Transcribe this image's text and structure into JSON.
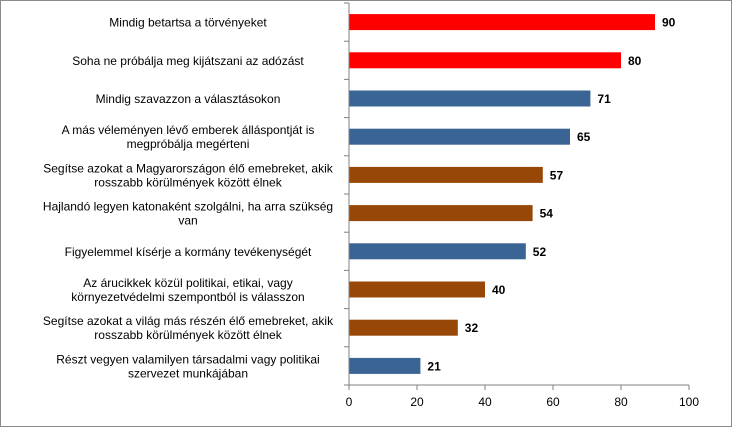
{
  "chart_data": {
    "type": "bar",
    "orientation": "horizontal",
    "title": "",
    "xlabel": "",
    "ylabel": "",
    "xlim": [
      0,
      100
    ],
    "x_ticks": [
      0,
      20,
      40,
      60,
      80,
      100
    ],
    "x_tick_labels": [
      "0",
      "20",
      "40",
      "60",
      "80",
      "100"
    ],
    "grid": false,
    "legend": "none",
    "categories": [
      [
        "Mindig betartsa a törvényeket"
      ],
      [
        "Soha ne próbálja meg kijátszani az adózást"
      ],
      [
        "Mindig szavazzon a választásokon"
      ],
      [
        "A más véleményen lévő emberek álláspontját is",
        "megpróbálja megérteni"
      ],
      [
        "Segítse azokat a Magyarországon élő emebreket, akik",
        "rosszabb körülmények között élnek"
      ],
      [
        "Hajlandó legyen katonaként szolgálni, ha arra szükség",
        "van"
      ],
      [
        "Figyelemmel kísérje a kormány tevékenységét"
      ],
      [
        "Az árucikkek közül politikai, etikai, vagy",
        "környezetvédelmi szempontból is válasszon"
      ],
      [
        "Segítse azokat a világ más részén élő emebreket, akik",
        "rosszabb körülmények között élnek"
      ],
      [
        "Részt vegyen valamilyen társadalmi vagy politikai",
        "szervezet munkájában"
      ]
    ],
    "values": [
      90,
      80,
      71,
      65,
      57,
      54,
      52,
      40,
      32,
      21
    ],
    "value_labels": [
      "90",
      "80",
      "71",
      "65",
      "57",
      "54",
      "52",
      "40",
      "32",
      "21"
    ],
    "bar_colors": [
      "#ff0000",
      "#ff0000",
      "#3a6494",
      "#3a6494",
      "#984806",
      "#984806",
      "#3a6494",
      "#984806",
      "#984806",
      "#3a6494"
    ]
  }
}
